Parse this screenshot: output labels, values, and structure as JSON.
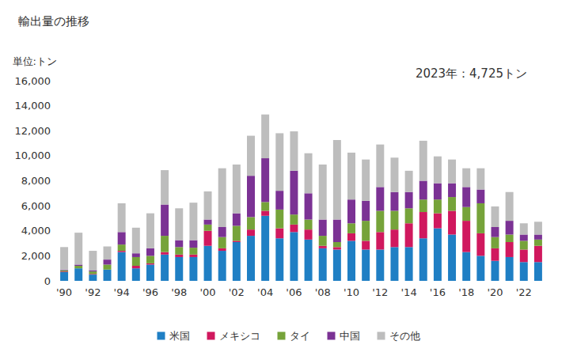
{
  "chart_data": {
    "type": "bar",
    "title": "輸出量の推移",
    "y_label": "単位:トン",
    "annotation": "2023年：4,725トン",
    "stacked": true,
    "grid": false,
    "legend": "bottom",
    "categories": [
      "'90",
      null,
      "'92",
      null,
      "'94",
      null,
      "'96",
      null,
      "'98",
      null,
      "'00",
      null,
      "'02",
      null,
      "'04",
      null,
      "'06",
      null,
      "'08",
      null,
      "'10",
      null,
      "'12",
      null,
      "'14",
      null,
      "'16",
      null,
      "'18",
      null,
      "'20",
      null,
      "'22",
      null
    ],
    "series": [
      {
        "name": "米国",
        "color": "#1f7fc4",
        "values": [
          700,
          1000,
          500,
          900,
          2300,
          1000,
          1300,
          2100,
          1900,
          1900,
          2800,
          2400,
          3100,
          3600,
          5200,
          3400,
          3900,
          3300,
          2600,
          2500,
          3200,
          2500,
          2500,
          2700,
          2700,
          3400,
          4200,
          3700,
          2300,
          2000,
          1600,
          1900,
          1500,
          1500
        ]
      },
      {
        "name": "メキシコ",
        "color": "#d0185e",
        "values": [
          50,
          0,
          50,
          0,
          100,
          200,
          100,
          200,
          200,
          200,
          1200,
          200,
          100,
          500,
          400,
          800,
          600,
          800,
          200,
          200,
          600,
          700,
          1400,
          1400,
          1900,
          2100,
          1200,
          1900,
          2500,
          1800,
          1000,
          1200,
          1000,
          1300
        ]
      },
      {
        "name": "タイ",
        "color": "#76a33a",
        "values": [
          100,
          200,
          200,
          400,
          500,
          700,
          600,
          1300,
          600,
          550,
          500,
          900,
          1200,
          1000,
          700,
          1500,
          800,
          800,
          800,
          400,
          800,
          1600,
          1700,
          1500,
          1200,
          1000,
          1100,
          1100,
          1100,
          2400,
          900,
          600,
          700,
          500
        ]
      },
      {
        "name": "中国",
        "color": "#7b3294",
        "values": [
          50,
          100,
          100,
          400,
          1000,
          300,
          600,
          2500,
          550,
          600,
          400,
          800,
          1000,
          3300,
          3500,
          1500,
          3500,
          2100,
          1300,
          1800,
          1900,
          1600,
          1900,
          1500,
          1300,
          1500,
          1300,
          1100,
          1600,
          1100,
          800,
          1100,
          500,
          400
        ]
      },
      {
        "name": "その他",
        "color": "#bdbdbd",
        "values": [
          1800,
          2550,
          1550,
          1050,
          2300,
          2050,
          2800,
          2750,
          2550,
          3000,
          2250,
          4700,
          3900,
          3200,
          3500,
          4600,
          3150,
          3200,
          4400,
          6350,
          3750,
          3300,
          3400,
          2750,
          1700,
          3200,
          2150,
          1900,
          1500,
          1700,
          1650,
          2300,
          900,
          1025
        ]
      }
    ],
    "ylim": [
      0,
      16000
    ],
    "yticks": [
      0,
      {
        "value": 2000,
        "label": "2,000"
      },
      {
        "value": 4000,
        "label": "4,000"
      },
      {
        "value": 6000,
        "label": "6,000"
      },
      {
        "value": 8000,
        "label": "8,000"
      },
      {
        "value": 10000,
        "label": "10,000"
      },
      {
        "value": 12000,
        "label": "12,000"
      },
      {
        "value": 14000,
        "label": "14,000"
      },
      {
        "value": 16000,
        "label": "16,000"
      }
    ]
  }
}
